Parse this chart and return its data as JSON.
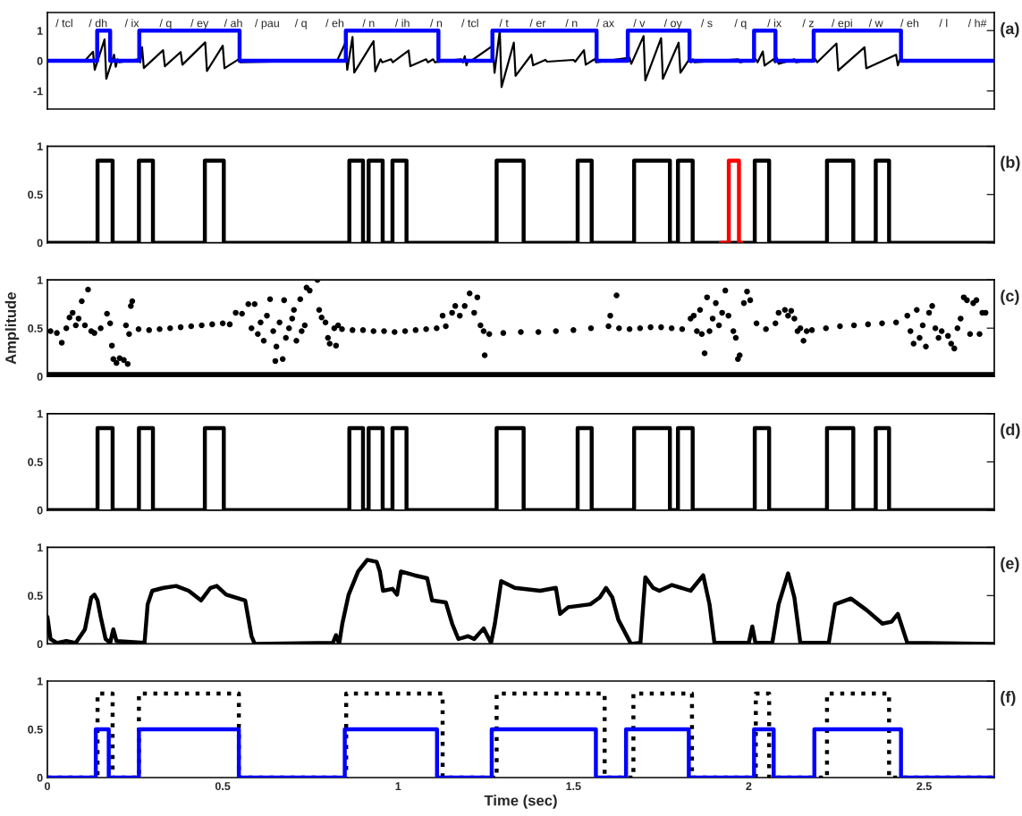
{
  "chart_data": [
    {
      "type": "step",
      "xlim": [
        0,
        2.7
      ],
      "ylim": [
        -1.6,
        1.6
      ],
      "yticks": [
        -1,
        0,
        1
      ],
      "tick_labels": "y",
      "series": [
        {
          "type": "line",
          "color": "#000000",
          "x": [
            0,
            0.005,
            0.1,
            0.105,
            0.13,
            0.135,
            0.163,
            0.168,
            0.19,
            0.195,
            0.2,
            0.205,
            0.26,
            0.265,
            0.27,
            0.275,
            0.33,
            0.335,
            0.38,
            0.385,
            0.45,
            0.455,
            0.5,
            0.505,
            0.545,
            0.55,
            0.82,
            0.825,
            0.85,
            0.855,
            0.87,
            0.875,
            0.93,
            0.935,
            0.95,
            0.955,
            0.98,
            0.985,
            1.03,
            1.035,
            1.08,
            1.085,
            1.1,
            1.105,
            1.18,
            1.185,
            1.19,
            1.195,
            1.2,
            1.205,
            1.27,
            1.275,
            1.29,
            1.295,
            1.33,
            1.335,
            1.38,
            1.385,
            1.42,
            1.425,
            1.5,
            1.505,
            1.53,
            1.535,
            1.56,
            1.565,
            1.66,
            1.665,
            1.7,
            1.705,
            1.75,
            1.755,
            1.8,
            1.805,
            1.83,
            1.835,
            1.84,
            1.845,
            1.97,
            1.975,
            2.02,
            2.025,
            2.04,
            2.045,
            2.07,
            2.075,
            2.08,
            2.085,
            2.13,
            2.135,
            2.19,
            2.195,
            2.25,
            2.255,
            2.33,
            2.335,
            2.42,
            2.425,
            2.43,
            2.435,
            2.7
          ],
          "values": [
            0,
            0,
            0.02,
            -0.02,
            0.3,
            -0.3,
            0.71,
            -0.6,
            0.2,
            -0.2,
            0.05,
            -0.05,
            0.05,
            -0.05,
            0.45,
            -0.24,
            0.35,
            -0.18,
            0.29,
            -0.13,
            0.61,
            -0.34,
            0.5,
            -0.25,
            0.05,
            -0.05,
            0.02,
            -0.02,
            0.6,
            -0.3,
            0.79,
            -0.39,
            0.65,
            -0.35,
            0.05,
            -0.05,
            0.05,
            -0.05,
            0.34,
            -0.18,
            0.05,
            -0.05,
            0.05,
            -0.05,
            0.05,
            -0.05,
            0.15,
            -0.15,
            0.03,
            -0.03,
            0.5,
            -0.4,
            1.0,
            -0.87,
            0.6,
            -0.5,
            0.2,
            -0.15,
            0.03,
            -0.03,
            0.03,
            -0.03,
            0.35,
            -0.13,
            0.05,
            -0.05,
            0.1,
            -0.1,
            0.82,
            -0.65,
            0.75,
            -0.6,
            0.6,
            -0.4,
            0.05,
            -0.05,
            0.05,
            -0.05,
            0.05,
            -0.05,
            0.05,
            -0.05,
            0.31,
            -0.16,
            0.05,
            -0.05,
            0.1,
            -0.1,
            0.05,
            -0.05,
            0.05,
            -0.05,
            0.57,
            -0.32,
            0.45,
            -0.25,
            0.2,
            -0.15,
            0.02,
            -0.02,
            0
          ]
        },
        {
          "type": "step",
          "color": "#0000ff",
          "x": [
            0,
            0.142,
            0.179,
            0.262,
            0.548,
            0.851,
            1.115,
            1.269,
            1.566,
            1.655,
            1.831,
            2.015,
            2.076,
            2.185,
            2.434,
            2.7
          ],
          "values": [
            0,
            1,
            0,
            1,
            0,
            1,
            0,
            1,
            0,
            1,
            0,
            1,
            0,
            1,
            0,
            0
          ]
        }
      ],
      "annotations": [
        "(a)",
        "/ tcl",
        "/ dh",
        "/ ix",
        "/ q",
        "/ ey",
        "/ ah",
        "/ pau",
        "/ q",
        "/ eh",
        "/ n",
        "/ ih",
        "/ n",
        "/ tcl",
        "/ t",
        "/ er",
        "/ n",
        "/ ax",
        "/ v",
        "/ oy",
        "/ s",
        "/ q",
        "/ ix",
        "/ z",
        "/ epi",
        "/ w",
        "/ eh",
        "/ l",
        "/ h#"
      ]
    },
    {
      "type": "step",
      "xlim": [
        0,
        2.7
      ],
      "ylim": [
        0,
        1
      ],
      "yticks": [
        0,
        0.5,
        1
      ],
      "tick_labels": "y",
      "series": [
        {
          "color": "#000000",
          "x": [
            0,
            0.143,
            0.186,
            0.261,
            0.301,
            0.449,
            0.503,
            0.861,
            0.9,
            0.916,
            0.956,
            0.984,
            1.024,
            1.281,
            1.358,
            1.512,
            1.552,
            1.673,
            1.775,
            1.798,
            1.84,
            2.017,
            2.058,
            2.223,
            2.298,
            2.362,
            2.4,
            2.7
          ],
          "values": [
            0,
            0.85,
            0,
            0.85,
            0,
            0.85,
            0,
            0.85,
            0,
            0.85,
            0,
            0.85,
            0,
            0.85,
            0,
            0.85,
            0,
            0.85,
            0,
            0.85,
            0,
            0.85,
            0,
            0.85,
            0,
            0.85,
            0,
            0
          ]
        },
        {
          "color": "#ff0000",
          "x": [
            1.92,
            1.943,
            1.972,
            1.979
          ],
          "values": [
            0,
            0.85,
            0,
            0
          ]
        }
      ],
      "annotations": [
        "(b)"
      ]
    },
    {
      "type": "scatter",
      "xlim": [
        0,
        2.7
      ],
      "ylim": [
        0,
        1
      ],
      "yticks": [
        0,
        0.5,
        1
      ],
      "tick_labels": "y",
      "ylabel": "Amplitude",
      "series": [
        {
          "type": "line",
          "color": "#000000",
          "x": [
            0,
            2.7
          ],
          "values": [
            0,
            0
          ]
        },
        {
          "color": "#000000",
          "x": [
            0.009,
            0.027,
            0.041,
            0.054,
            0.063,
            0.072,
            0.081,
            0.089,
            0.098,
            0.107,
            0.116,
            0.125,
            0.134,
            0.152,
            0.17,
            0.179,
            0.184,
            0.188,
            0.197,
            0.206,
            0.218,
            0.229,
            0.224,
            0.233,
            0.238,
            0.242,
            0.26,
            0.29,
            0.32,
            0.35,
            0.38,
            0.41,
            0.44,
            0.47,
            0.5,
            0.52,
            0.537,
            0.555,
            0.573,
            0.582,
            0.591,
            0.6,
            0.608,
            0.617,
            0.626,
            0.635,
            0.644,
            0.65,
            0.653,
            0.662,
            0.671,
            0.675,
            0.68,
            0.689,
            0.698,
            0.703,
            0.71,
            0.721,
            0.725,
            0.734,
            0.739,
            0.748,
            0.77,
            0.775,
            0.782,
            0.793,
            0.8,
            0.805,
            0.818,
            0.823,
            0.829,
            0.84,
            0.87,
            0.9,
            0.93,
            0.96,
            0.99,
            1.02,
            1.05,
            1.08,
            1.11,
            1.127,
            1.136,
            1.154,
            1.163,
            1.176,
            1.19,
            1.204,
            1.217,
            1.226,
            1.235,
            1.244,
            1.247,
            1.26,
            1.3,
            1.35,
            1.4,
            1.45,
            1.5,
            1.55,
            1.6,
            1.605,
            1.623,
            1.63,
            1.66,
            1.69,
            1.72,
            1.75,
            1.78,
            1.81,
            1.834,
            1.843,
            1.852,
            1.861,
            1.866,
            1.874,
            1.881,
            1.888,
            1.897,
            1.906,
            1.915,
            1.924,
            1.933,
            1.942,
            1.956,
            1.963,
            1.969,
            1.974,
            1.986,
            1.995,
            2.004,
            2.022,
            2.049,
            2.076,
            2.085,
            2.103,
            2.112,
            2.121,
            2.13,
            2.139,
            2.147,
            2.156,
            2.165,
            2.18,
            2.22,
            2.26,
            2.3,
            2.34,
            2.38,
            2.42,
            2.452,
            2.461,
            2.47,
            2.479,
            2.487,
            2.496,
            2.505,
            2.514,
            2.523,
            2.532,
            2.541,
            2.55,
            2.568,
            2.577,
            2.586,
            2.595,
            2.604,
            2.613,
            2.622,
            2.631,
            2.64,
            2.649,
            2.658,
            2.666,
            2.675
          ],
          "values": [
            0.47,
            0.45,
            0.35,
            0.5,
            0.61,
            0.66,
            0.53,
            0.6,
            0.78,
            0.53,
            0.9,
            0.47,
            0.45,
            0.5,
            0.65,
            0.55,
            0.32,
            0.18,
            0.14,
            0.19,
            0.17,
            0.13,
            0.53,
            0.44,
            0.73,
            0.78,
            0.49,
            0.48,
            0.49,
            0.5,
            0.51,
            0.52,
            0.53,
            0.54,
            0.55,
            0.54,
            0.66,
            0.65,
            0.75,
            0.5,
            0.75,
            0.44,
            0.56,
            0.37,
            0.63,
            0.8,
            0.47,
            0.16,
            0.31,
            0.56,
            0.18,
            0.79,
            0.4,
            0.5,
            0.6,
            0.69,
            0.37,
            0.8,
            0.47,
            0.53,
            0.92,
            0.89,
            1.0,
            0.69,
            0.61,
            0.56,
            0.4,
            0.34,
            0.5,
            0.32,
            0.53,
            0.49,
            0.48,
            0.48,
            0.47,
            0.47,
            0.46,
            0.47,
            0.48,
            0.49,
            0.5,
            0.63,
            0.52,
            0.66,
            0.73,
            0.63,
            0.73,
            0.86,
            0.66,
            0.82,
            0.53,
            0.47,
            0.22,
            0.44,
            0.45,
            0.46,
            0.46,
            0.47,
            0.48,
            0.5,
            0.52,
            0.63,
            0.84,
            0.5,
            0.49,
            0.5,
            0.51,
            0.51,
            0.5,
            0.49,
            0.6,
            0.63,
            0.47,
            0.69,
            0.44,
            0.24,
            0.82,
            0.47,
            0.6,
            0.76,
            0.53,
            0.66,
            0.89,
            0.63,
            0.47,
            0.4,
            0.18,
            0.22,
            0.76,
            0.88,
            0.79,
            0.55,
            0.49,
            0.55,
            0.66,
            0.69,
            0.63,
            0.68,
            0.6,
            0.47,
            0.5,
            0.37,
            0.47,
            0.48,
            0.5,
            0.52,
            0.53,
            0.54,
            0.55,
            0.56,
            0.63,
            0.47,
            0.34,
            0.69,
            0.4,
            0.53,
            0.31,
            0.66,
            0.73,
            0.5,
            0.4,
            0.47,
            0.42,
            0.34,
            0.29,
            0.5,
            0.6,
            0.82,
            0.79,
            0.44,
            0.76,
            0.79,
            0.44,
            0.66,
            0.66
          ]
        }
      ],
      "annotations": [
        "(c)"
      ]
    },
    {
      "type": "step",
      "xlim": [
        0,
        2.7
      ],
      "ylim": [
        0,
        1
      ],
      "yticks": [
        0,
        0.5,
        1
      ],
      "tick_labels": "y",
      "series": [
        {
          "color": "#000000",
          "x": [
            0,
            0.143,
            0.186,
            0.261,
            0.301,
            0.449,
            0.503,
            0.861,
            0.9,
            0.916,
            0.956,
            0.984,
            1.024,
            1.281,
            1.358,
            1.512,
            1.552,
            1.673,
            1.775,
            1.798,
            1.84,
            2.017,
            2.058,
            2.223,
            2.298,
            2.362,
            2.4,
            2.7
          ],
          "values": [
            0,
            0.85,
            0,
            0.85,
            0,
            0.85,
            0,
            0.85,
            0,
            0.85,
            0,
            0.85,
            0,
            0.85,
            0,
            0.85,
            0,
            0.85,
            0,
            0.85,
            0,
            0.85,
            0,
            0.85,
            0,
            0.85,
            0,
            0
          ]
        }
      ],
      "annotations": [
        "(d)"
      ]
    },
    {
      "type": "line",
      "xlim": [
        0,
        2.7
      ],
      "ylim": [
        0,
        1
      ],
      "yticks": [
        0,
        0.5,
        1
      ],
      "tick_labels": "y",
      "series": [
        {
          "color": "#000000",
          "x": [
            0,
            0.009,
            0.027,
            0.054,
            0.081,
            0.107,
            0.125,
            0.134,
            0.143,
            0.152,
            0.166,
            0.179,
            0.188,
            0.197,
            0.277,
            0.286,
            0.299,
            0.331,
            0.367,
            0.403,
            0.438,
            0.465,
            0.483,
            0.51,
            0.564,
            0.582,
            0.591,
            0.814,
            0.823,
            0.832,
            0.841,
            0.859,
            0.886,
            0.912,
            0.939,
            0.948,
            0.957,
            0.984,
            0.997,
            1.008,
            1.047,
            1.083,
            1.097,
            1.136,
            1.154,
            1.172,
            1.199,
            1.217,
            1.244,
            1.265,
            1.276,
            1.294,
            1.333,
            1.405,
            1.45,
            1.462,
            1.485,
            1.548,
            1.575,
            1.593,
            1.611,
            1.628,
            1.664,
            1.691,
            1.705,
            1.727,
            1.745,
            1.781,
            1.834,
            1.87,
            1.888,
            1.902,
            2.0,
            2.01,
            2.019,
            2.067,
            2.085,
            2.112,
            2.13,
            2.147,
            2.228,
            2.246,
            2.291,
            2.336,
            2.381,
            2.407,
            2.425,
            2.452,
            2.7
          ],
          "values": [
            0.28,
            0.05,
            0.01,
            0.03,
            0.01,
            0.15,
            0.48,
            0.51,
            0.45,
            0.28,
            0.05,
            0.01,
            0.15,
            0.03,
            0.01,
            0.41,
            0.55,
            0.58,
            0.6,
            0.55,
            0.45,
            0.58,
            0.6,
            0.51,
            0.45,
            0.08,
            0,
            0.01,
            0.09,
            0,
            0.21,
            0.51,
            0.75,
            0.87,
            0.85,
            0.75,
            0.55,
            0.57,
            0.51,
            0.75,
            0.71,
            0.68,
            0.45,
            0.43,
            0.21,
            0.05,
            0.08,
            0.05,
            0.16,
            0.01,
            0.21,
            0.65,
            0.58,
            0.55,
            0.58,
            0.31,
            0.38,
            0.41,
            0.48,
            0.58,
            0.48,
            0.25,
            0,
            0.01,
            0.69,
            0.58,
            0.55,
            0.61,
            0.55,
            0.71,
            0.41,
            0.01,
            0.01,
            0.18,
            0.01,
            0.01,
            0.41,
            0.73,
            0.48,
            0.01,
            0.01,
            0.41,
            0.47,
            0.35,
            0.21,
            0.23,
            0.31,
            0.01,
            0
          ]
        }
      ],
      "annotations": [
        "(e)"
      ]
    },
    {
      "type": "step",
      "xlim": [
        0,
        2.7
      ],
      "ylim": [
        0,
        1
      ],
      "yticks": [
        0,
        0.5,
        1
      ],
      "xticks": [
        0,
        0.5,
        1,
        1.5,
        2,
        2.5
      ],
      "xlabel": "Time (sec)",
      "series": [
        {
          "color": "#000000",
          "line_style": "dotted",
          "x": [
            0,
            0.143,
            0.186,
            0.261,
            0.546,
            0.852,
            1.127,
            1.281,
            1.589,
            1.671,
            1.838,
            2.02,
            2.058,
            2.223,
            2.4,
            2.7
          ],
          "values": [
            0,
            0.87,
            0,
            0.87,
            0,
            0.87,
            0,
            0.87,
            0,
            0.87,
            0,
            0.87,
            0,
            0.87,
            0,
            0
          ]
        },
        {
          "color": "#0000ff",
          "x": [
            0,
            0.138,
            0.175,
            0.261,
            0.546,
            0.848,
            1.111,
            1.267,
            1.564,
            1.65,
            1.829,
            2.015,
            2.071,
            2.187,
            2.434,
            2.7
          ],
          "values": [
            0,
            0.5,
            0,
            0.5,
            0,
            0.5,
            0,
            0.5,
            0,
            0.5,
            0,
            0.5,
            0,
            0.5,
            0,
            0
          ]
        }
      ],
      "annotations": [
        "(f)"
      ]
    }
  ]
}
